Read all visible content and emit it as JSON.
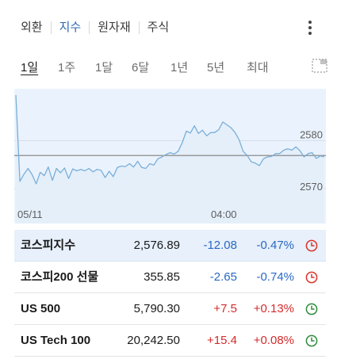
{
  "tabs": [
    {
      "label": "외환",
      "active": false
    },
    {
      "label": "지수",
      "active": true
    },
    {
      "label": "원자재",
      "active": false
    },
    {
      "label": "주식",
      "active": false
    }
  ],
  "ranges": [
    {
      "label": "1일",
      "active": true
    },
    {
      "label": "1주",
      "active": false
    },
    {
      "label": "1달",
      "active": false
    },
    {
      "label": "6달",
      "active": false
    },
    {
      "label": "1년",
      "active": false
    },
    {
      "label": "5년",
      "active": false
    },
    {
      "label": "최대",
      "active": false
    }
  ],
  "chart_data": {
    "type": "area",
    "y_ticks": [
      2580,
      2570
    ],
    "ylim": [
      2568,
      2590
    ],
    "x_ticks": [
      "05/11",
      "04:00"
    ],
    "reference_value": 2576.89,
    "line_color": "#7aaed8",
    "fill_color": "#eaf3fd",
    "values": [
      2589.5,
      2571.5,
      2573.0,
      2574.2,
      2572.9,
      2571.0,
      2573.4,
      2572.7,
      2574.5,
      2571.7,
      2574.2,
      2573.3,
      2574.3,
      2572.1,
      2574.1,
      2573.7,
      2574.0,
      2573.7,
      2574.2,
      2573.5,
      2574.0,
      2573.8,
      2572.3,
      2573.6,
      2572.5,
      2574.4,
      2574.7,
      2574.6,
      2575.2,
      2574.5,
      2575.7,
      2574.4,
      2574.2,
      2575.2,
      2574.9,
      2576.2,
      2576.6,
      2577.1,
      2577.5,
      2577.2,
      2577.8,
      2579.6,
      2582.0,
      2581.6,
      2583.1,
      2581.5,
      2582.2,
      2581.0,
      2581.7,
      2581.7,
      2582.3,
      2583.9,
      2583.3,
      2582.7,
      2581.7,
      2580.2,
      2577.8,
      2576.9,
      2575.6,
      2575.3,
      2574.8,
      2576.2,
      2576.6,
      2576.7,
      2577.3,
      2577.3,
      2578.0,
      2578.3,
      2578.0,
      2578.7,
      2577.9,
      2576.6,
      2577.3,
      2577.5,
      2576.3,
      2576.8,
      2576.6
    ]
  },
  "rows": [
    {
      "name": "코스피지수",
      "price": "2,576.89",
      "change": "-12.08",
      "percent": "-0.47%",
      "direction": "neg",
      "market": "closed",
      "selected": true
    },
    {
      "name": "코스피200 선물",
      "price": "355.85",
      "change": "-2.65",
      "percent": "-0.74%",
      "direction": "neg",
      "market": "closed",
      "selected": false
    },
    {
      "name": "US 500",
      "price": "5,790.30",
      "change": "+7.5",
      "percent": "+0.13%",
      "direction": "pos",
      "market": "open",
      "selected": false
    },
    {
      "name": "US Tech 100",
      "price": "20,242.50",
      "change": "+15.4",
      "percent": "+0.08%",
      "direction": "pos",
      "market": "open",
      "selected": false
    }
  ],
  "colors": {
    "accent": "#2a68b4",
    "negative": "#2a68c4",
    "positive": "#d52b2b",
    "market_closed": "#d9342b",
    "market_open": "#2e8b3a"
  },
  "icons": {
    "menu": "vertical-dots-icon",
    "expand": "expand-chart-icon",
    "closed": "clock-red-icon",
    "open": "clock-green-icon"
  }
}
